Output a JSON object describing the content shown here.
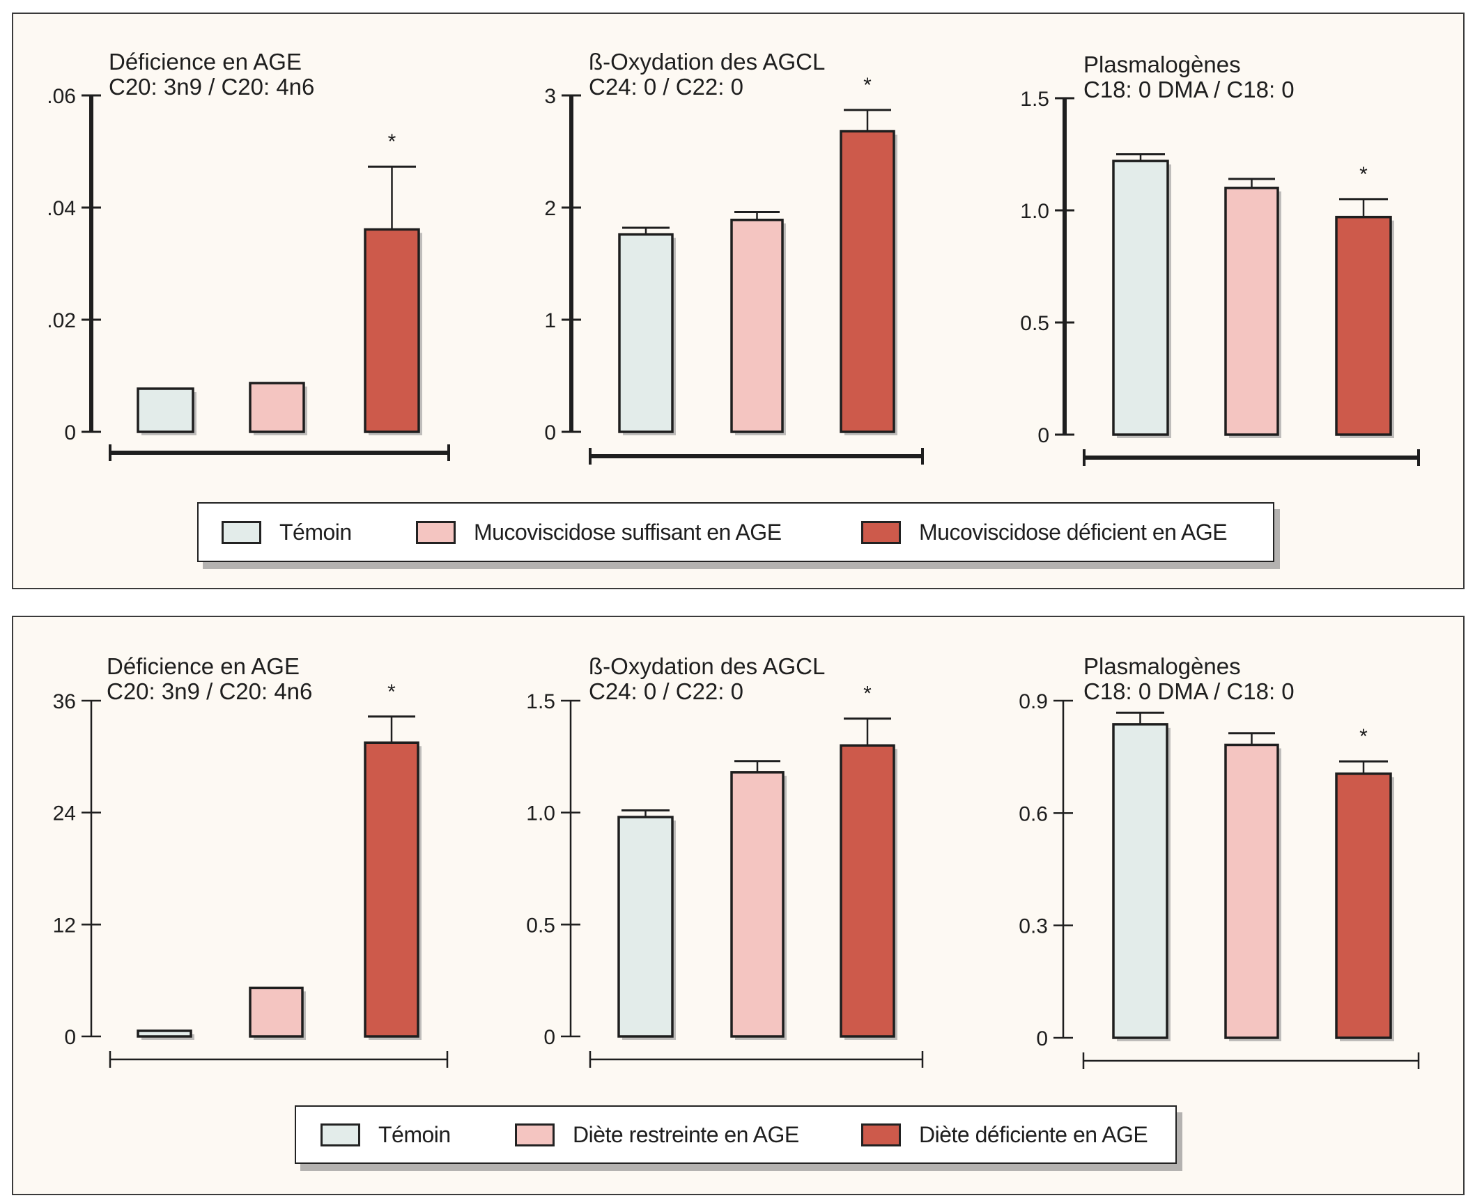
{
  "colors": {
    "temoin": "#e3ecea",
    "suffisant": "#f4c5c1",
    "deficient": "#cd5a4b",
    "ink": "#1e1e1e",
    "shadow": "#8c8c8c"
  },
  "legend_top": {
    "items": [
      {
        "label": "Témoin",
        "color_key": "temoin"
      },
      {
        "label": "Mucoviscidose suffisant en AGE",
        "color_key": "suffisant"
      },
      {
        "label": "Mucoviscidose déficient en AGE",
        "color_key": "deficient"
      }
    ]
  },
  "legend_bottom": {
    "items": [
      {
        "label": "Témoin",
        "color_key": "temoin"
      },
      {
        "label": "Diète restreinte en AGE",
        "color_key": "suffisant"
      },
      {
        "label": "Diète déficiente en AGE",
        "color_key": "deficient"
      }
    ]
  },
  "chart_data": [
    {
      "type": "bar",
      "panel": "top",
      "title": "Déficience en AGE",
      "subtitle": "C20: 3n9 / C20: 4n6",
      "categories": [
        "Témoin",
        "Mucoviscidose suffisant en AGE",
        "Mucoviscidose déficient en AGE"
      ],
      "values": [
        0.0077,
        0.0087,
        0.0361
      ],
      "error_upper": [
        null,
        null,
        0.0473
      ],
      "significant": [
        false,
        false,
        true
      ],
      "ylim": [
        0,
        0.06
      ],
      "yticks": [
        0,
        0.02,
        0.04,
        0.06
      ],
      "ytick_labels": [
        "0",
        ".02",
        ".04",
        ".06"
      ],
      "xlabel": "",
      "ylabel": "",
      "grid": false
    },
    {
      "type": "bar",
      "panel": "top",
      "title": "ß-Oxydation des AGCL",
      "subtitle": "C24: 0 / C22: 0",
      "categories": [
        "Témoin",
        "Mucoviscidose suffisant en AGE",
        "Mucoviscidose déficient en AGE"
      ],
      "values": [
        1.76,
        1.89,
        2.68
      ],
      "error_upper": [
        1.82,
        1.96,
        2.87
      ],
      "significant": [
        false,
        false,
        true
      ],
      "ylim": [
        0,
        3
      ],
      "yticks": [
        0,
        1,
        2,
        3
      ],
      "ytick_labels": [
        "0",
        "1",
        "2",
        "3"
      ],
      "xlabel": "",
      "ylabel": "",
      "grid": false
    },
    {
      "type": "bar",
      "panel": "top",
      "title": "Plasmalogènes",
      "subtitle": "C18: 0 DMA / C18: 0",
      "categories": [
        "Témoin",
        "Mucoviscidose suffisant en AGE",
        "Mucoviscidose déficient en AGE"
      ],
      "values": [
        1.22,
        1.1,
        0.97
      ],
      "error_upper": [
        1.25,
        1.14,
        1.05
      ],
      "significant": [
        false,
        false,
        true
      ],
      "ylim": [
        0,
        1.5
      ],
      "yticks": [
        0,
        0.5,
        1.0,
        1.5
      ],
      "ytick_labels": [
        "0",
        "0.5",
        "1.0",
        "1.5"
      ],
      "xlabel": "",
      "ylabel": "",
      "grid": false
    },
    {
      "type": "bar",
      "panel": "bottom",
      "title": "Déficience en AGE",
      "subtitle": "C20: 3n9 / C20: 4n6",
      "categories": [
        "Témoin",
        "Diète restreinte en AGE",
        "Diète déficiente en AGE"
      ],
      "values": [
        0.6,
        5.2,
        31.5
      ],
      "error_upper": [
        null,
        null,
        34.3
      ],
      "significant": [
        false,
        false,
        true
      ],
      "ylim": [
        0,
        36
      ],
      "yticks": [
        0,
        12,
        24,
        36
      ],
      "ytick_labels": [
        "0",
        "12",
        "24",
        "36"
      ],
      "xlabel": "",
      "ylabel": "",
      "grid": false
    },
    {
      "type": "bar",
      "panel": "bottom",
      "title": "ß-Oxydation des AGCL",
      "subtitle": "C24: 0 / C22: 0",
      "categories": [
        "Témoin",
        "Diète restreinte en AGE",
        "Diète déficiente en AGE"
      ],
      "values": [
        0.98,
        1.18,
        1.3
      ],
      "error_upper": [
        1.01,
        1.23,
        1.42
      ],
      "significant": [
        false,
        false,
        true
      ],
      "ylim": [
        0,
        1.5
      ],
      "yticks": [
        0,
        0.5,
        1.0,
        1.5
      ],
      "ytick_labels": [
        "0",
        "0.5",
        "1.0",
        "1.5"
      ],
      "xlabel": "",
      "ylabel": "",
      "grid": false
    },
    {
      "type": "bar",
      "panel": "bottom",
      "title": "Plasmalogènes",
      "subtitle": "C18: 0 DMA / C18: 0",
      "categories": [
        "Témoin",
        "Diète restreinte en AGE",
        "Diète déficiente en AGE"
      ],
      "values": [
        0.837,
        0.782,
        0.705
      ],
      "error_upper": [
        0.868,
        0.813,
        0.738
      ],
      "significant": [
        false,
        false,
        true
      ],
      "ylim": [
        0,
        0.9
      ],
      "yticks": [
        0,
        0.3,
        0.6,
        0.9
      ],
      "ytick_labels": [
        "0",
        "0.3",
        "0.6",
        "0.9"
      ],
      "xlabel": "",
      "ylabel": "",
      "grid": false
    }
  ],
  "significance_marker": "*"
}
